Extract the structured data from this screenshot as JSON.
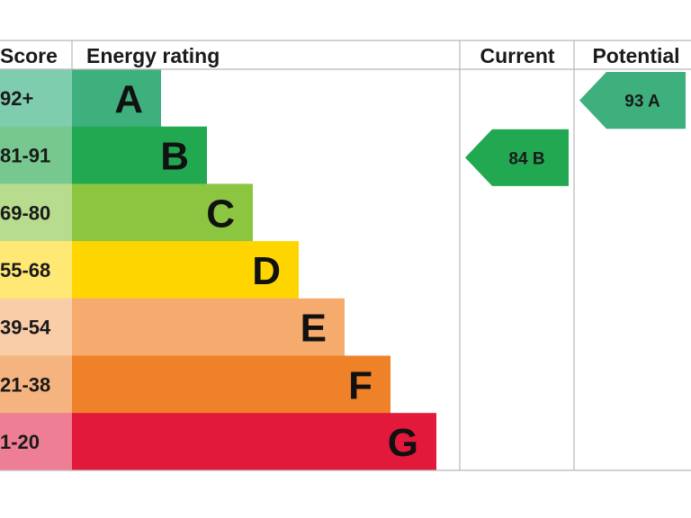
{
  "headers": {
    "score": "Score",
    "rating": "Energy rating",
    "current": "Current",
    "potential": "Potential"
  },
  "chart_data": {
    "type": "bar",
    "categories": [
      "A",
      "B",
      "C",
      "D",
      "E",
      "F",
      "G"
    ],
    "score_ranges": [
      "92+",
      "81-91",
      "69-80",
      "55-68",
      "39-54",
      "21-38",
      "1-20"
    ],
    "bands": [
      {
        "letter": "A",
        "range": "92+",
        "color": "#3db07e",
        "score_color": "#7fcdaf"
      },
      {
        "letter": "B",
        "range": "81-91",
        "color": "#21a851",
        "score_color": "#76c88f"
      },
      {
        "letter": "C",
        "range": "69-80",
        "color": "#8cc540",
        "score_color": "#b8dc8e"
      },
      {
        "letter": "D",
        "range": "55-68",
        "color": "#ffd500",
        "score_color": "#ffe873"
      },
      {
        "letter": "E",
        "range": "39-54",
        "color": "#f6ab6e",
        "score_color": "#f9cda8"
      },
      {
        "letter": "F",
        "range": "21-38",
        "color": "#ef8228",
        "score_color": "#f5b47f"
      },
      {
        "letter": "G",
        "range": "1-20",
        "color": "#e3193b",
        "score_color": "#ee7e93"
      }
    ],
    "current": {
      "value": 84,
      "band": "B",
      "label": "84  B",
      "color": "#21a851"
    },
    "potential": {
      "value": 93,
      "band": "A",
      "label": "93  A",
      "color": "#3db07e"
    }
  }
}
